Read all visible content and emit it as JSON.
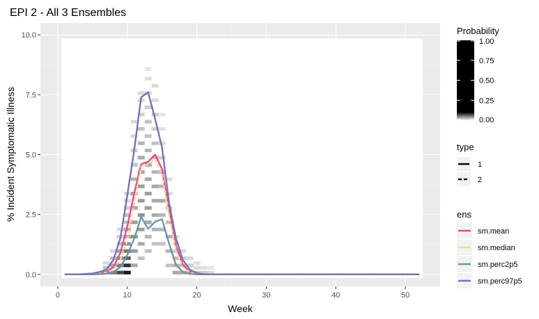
{
  "chart_data": {
    "type": "line",
    "title": "EPI 2 - All 3 Ensembles",
    "xlabel": "Week",
    "ylabel": "% Incident Symptomatic Illness",
    "xlim": [
      -2.5,
      55
    ],
    "ylim": [
      -0.5,
      10.5
    ],
    "xticks": [
      0,
      10,
      20,
      30,
      40,
      50
    ],
    "yticks": [
      0.0,
      2.5,
      5.0,
      7.5,
      10.0
    ],
    "xtick_labels": [
      "0",
      "10",
      "20",
      "30",
      "40",
      "50"
    ],
    "ytick_labels": [
      "0.0",
      "2.5",
      "5.0",
      "7.5",
      "10.0"
    ],
    "grid": true,
    "legend_position": "right",
    "heatmap": {
      "fill_scale": "Probability",
      "columns": [
        {
          "week": 7,
          "bins": [
            [
              0.0,
              0.4
            ],
            [
              0.2,
              0.2
            ],
            [
              0.4,
              0.1
            ]
          ]
        },
        {
          "week": 8,
          "bins": [
            [
              0.0,
              0.5
            ],
            [
              0.3,
              0.3
            ],
            [
              0.6,
              0.2
            ],
            [
              0.9,
              0.1
            ]
          ]
        },
        {
          "week": 9,
          "bins": [
            [
              0.0,
              0.7
            ],
            [
              0.3,
              0.5
            ],
            [
              0.6,
              0.4
            ],
            [
              0.9,
              0.3
            ],
            [
              1.2,
              0.2
            ],
            [
              1.5,
              0.15
            ],
            [
              1.8,
              0.1
            ]
          ]
        },
        {
          "week": 10,
          "bins": [
            [
              0.0,
              0.9
            ],
            [
              0.3,
              0.8
            ],
            [
              0.6,
              0.6
            ],
            [
              0.9,
              0.5
            ],
            [
              1.2,
              0.4
            ],
            [
              1.5,
              0.3
            ],
            [
              1.8,
              0.3
            ],
            [
              2.1,
              0.2
            ],
            [
              2.4,
              0.2
            ],
            [
              2.7,
              0.15
            ],
            [
              3.0,
              0.1
            ],
            [
              3.3,
              0.1
            ]
          ]
        },
        {
          "week": 11,
          "bins": [
            [
              0.3,
              0.3
            ],
            [
              0.9,
              0.35
            ],
            [
              1.5,
              0.4
            ],
            [
              2.1,
              0.35
            ],
            [
              2.7,
              0.3
            ],
            [
              3.3,
              0.3
            ],
            [
              3.9,
              0.25
            ],
            [
              4.5,
              0.2
            ],
            [
              5.1,
              0.15
            ],
            [
              5.7,
              0.1
            ],
            [
              6.3,
              0.1
            ]
          ]
        },
        {
          "week": 12,
          "bins": [
            [
              0.6,
              0.2
            ],
            [
              1.2,
              0.3
            ],
            [
              1.8,
              0.35
            ],
            [
              2.4,
              0.4
            ],
            [
              3.0,
              0.35
            ],
            [
              3.6,
              0.35
            ],
            [
              4.2,
              0.3
            ],
            [
              4.8,
              0.3
            ],
            [
              5.4,
              0.25
            ],
            [
              6.0,
              0.2
            ],
            [
              6.6,
              0.15
            ],
            [
              7.2,
              0.1
            ],
            [
              7.5,
              0.1
            ]
          ]
        },
        {
          "week": 13,
          "bins": [
            [
              0.9,
              0.2
            ],
            [
              1.5,
              0.25
            ],
            [
              2.1,
              0.3
            ],
            [
              2.7,
              0.35
            ],
            [
              3.3,
              0.35
            ],
            [
              3.9,
              0.3
            ],
            [
              4.5,
              0.3
            ],
            [
              5.1,
              0.25
            ],
            [
              5.7,
              0.2
            ],
            [
              6.3,
              0.2
            ],
            [
              6.9,
              0.15
            ],
            [
              7.5,
              0.1
            ],
            [
              8.1,
              0.08
            ],
            [
              8.5,
              0.05
            ]
          ]
        },
        {
          "week": 14,
          "bins": [
            [
              1.2,
              0.2
            ],
            [
              1.8,
              0.25
            ],
            [
              2.4,
              0.3
            ],
            [
              3.0,
              0.3
            ],
            [
              3.6,
              0.3
            ],
            [
              4.2,
              0.25
            ],
            [
              4.8,
              0.2
            ],
            [
              5.4,
              0.2
            ],
            [
              6.0,
              0.15
            ],
            [
              6.6,
              0.15
            ],
            [
              7.2,
              0.1
            ],
            [
              7.8,
              0.1
            ]
          ]
        },
        {
          "week": 15,
          "bins": [
            [
              1.2,
              0.2
            ],
            [
              1.8,
              0.25
            ],
            [
              2.4,
              0.25
            ],
            [
              3.0,
              0.3
            ],
            [
              3.6,
              0.25
            ],
            [
              4.2,
              0.2
            ],
            [
              4.8,
              0.15
            ],
            [
              5.4,
              0.1
            ],
            [
              6.0,
              0.08
            ],
            [
              6.6,
              0.05
            ]
          ]
        },
        {
          "week": 16,
          "bins": [
            [
              0.3,
              0.2
            ],
            [
              0.9,
              0.25
            ],
            [
              1.5,
              0.25
            ],
            [
              2.1,
              0.2
            ],
            [
              2.7,
              0.15
            ],
            [
              3.3,
              0.1
            ],
            [
              3.9,
              0.08
            ]
          ]
        },
        {
          "week": 17,
          "bins": [
            [
              0.0,
              0.3
            ],
            [
              0.3,
              0.25
            ],
            [
              0.6,
              0.2
            ],
            [
              0.9,
              0.15
            ],
            [
              1.2,
              0.1
            ],
            [
              1.5,
              0.08
            ]
          ]
        },
        {
          "week": 18,
          "bins": [
            [
              0.0,
              0.3
            ],
            [
              0.3,
              0.2
            ],
            [
              0.6,
              0.15
            ],
            [
              0.9,
              0.1
            ]
          ]
        },
        {
          "week": 19,
          "bins": [
            [
              0.0,
              0.25
            ],
            [
              0.3,
              0.15
            ],
            [
              0.6,
              0.1
            ]
          ]
        },
        {
          "week": 20,
          "bins": [
            [
              0.0,
              0.2
            ],
            [
              0.2,
              0.1
            ],
            [
              0.4,
              0.08
            ]
          ]
        },
        {
          "week": 21,
          "bins": [
            [
              0.0,
              0.15
            ],
            [
              0.2,
              0.08
            ]
          ]
        },
        {
          "week": 22,
          "bins": [
            [
              0.0,
              0.1
            ],
            [
              0.2,
              0.05
            ]
          ]
        }
      ]
    },
    "x": [
      1,
      2,
      3,
      4,
      5,
      6,
      7,
      8,
      9,
      10,
      11,
      12,
      13,
      14,
      15,
      16,
      17,
      18,
      19,
      20,
      21,
      22,
      23,
      24,
      25,
      26,
      27,
      28,
      29,
      30,
      31,
      32,
      33,
      34,
      35,
      36,
      37,
      38,
      39,
      40,
      41,
      42,
      43,
      44,
      45,
      46,
      47,
      48,
      49,
      50,
      51,
      52
    ],
    "series": [
      {
        "name": "sm.mean",
        "color": "#e84a8e",
        "linetype": 1,
        "values": [
          0,
          0,
          0,
          0.01,
          0.02,
          0.05,
          0.1,
          0.3,
          0.9,
          2.0,
          3.4,
          4.6,
          4.7,
          5.0,
          4.4,
          2.7,
          1.2,
          0.4,
          0.1,
          0.03,
          0.01,
          0,
          0,
          0,
          0,
          0,
          0,
          0,
          0,
          0,
          0,
          0,
          0,
          0,
          0,
          0,
          0,
          0,
          0,
          0,
          0,
          0,
          0,
          0,
          0,
          0,
          0,
          0,
          0,
          0,
          0,
          0
        ]
      },
      {
        "name": "sm.median",
        "color": "#fad891",
        "linetype": 2,
        "values": [
          0,
          0,
          0,
          0.01,
          0.02,
          0.04,
          0.08,
          0.2,
          0.6,
          1.4,
          3.0,
          4.5,
          4.6,
          4.8,
          4.2,
          2.5,
          1.0,
          0.3,
          0.08,
          0.02,
          0.01,
          0,
          0,
          0,
          0,
          0,
          0,
          0,
          0,
          0,
          0,
          0,
          0,
          0,
          0,
          0,
          0,
          0,
          0,
          0,
          0,
          0,
          0,
          0,
          0,
          0,
          0,
          0,
          0,
          0,
          0,
          0
        ]
      },
      {
        "name": "sm.perc2p5",
        "color": "#6a96a8",
        "linetype": 1,
        "values": [
          0,
          0,
          0,
          0,
          0,
          0.01,
          0.03,
          0.1,
          0.3,
          0.8,
          1.5,
          2.4,
          1.9,
          2.2,
          2.3,
          1.3,
          0.4,
          0.1,
          0.02,
          0,
          0,
          0,
          0,
          0,
          0,
          0,
          0,
          0,
          0,
          0,
          0,
          0,
          0,
          0,
          0,
          0,
          0,
          0,
          0,
          0,
          0,
          0,
          0,
          0,
          0,
          0,
          0,
          0,
          0,
          0,
          0,
          0
        ]
      },
      {
        "name": "sm.perc97p5",
        "color": "#7774b0",
        "linetype": 1,
        "values": [
          0,
          0,
          0,
          0.02,
          0.04,
          0.1,
          0.2,
          0.6,
          1.5,
          3.3,
          5.2,
          7.4,
          7.6,
          6.5,
          5.3,
          3.0,
          1.5,
          0.6,
          0.2,
          0.05,
          0.01,
          0,
          0,
          0,
          0,
          0,
          0,
          0,
          0,
          0,
          0,
          0,
          0,
          0,
          0,
          0,
          0,
          0,
          0,
          0,
          0,
          0,
          0,
          0,
          0,
          0,
          0,
          0,
          0,
          0,
          0,
          0
        ]
      }
    ]
  },
  "legend": {
    "probability": {
      "title": "Probability",
      "labels": [
        "1.00",
        "0.75",
        "0.50",
        "0.25",
        "0.00"
      ]
    },
    "type": {
      "title": "type",
      "items": [
        {
          "label": "1",
          "dash": false
        },
        {
          "label": "2",
          "dash": true
        }
      ]
    },
    "ens": {
      "title": "ens",
      "items": [
        {
          "label": "sm.mean",
          "color": "#e84a8e"
        },
        {
          "label": "sm.median",
          "color": "#fad891"
        },
        {
          "label": "sm.perc2p5",
          "color": "#6a96a8"
        },
        {
          "label": "sm.perc97p5",
          "color": "#7774b0"
        }
      ]
    }
  },
  "colors": {
    "panel": "#ebebeb",
    "grid_major": "#ffffff",
    "grid_minor": "#f2f2f2",
    "tick_text": "#4d4d4d"
  }
}
